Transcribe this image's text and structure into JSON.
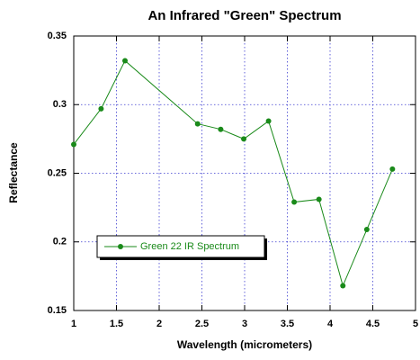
{
  "chart_data": {
    "type": "line",
    "title": "An Infrared \"Green\" Spectrum",
    "xlabel": "Wavelength (micrometers)",
    "ylabel": "Reflectance",
    "x": [
      1.0,
      1.32,
      1.6,
      2.45,
      2.72,
      2.99,
      3.28,
      3.58,
      3.87,
      4.15,
      4.43,
      4.73
    ],
    "series": [
      {
        "name": "Green 22 IR Spectrum",
        "color": "#1a8a1a",
        "values": [
          0.271,
          0.297,
          0.332,
          0.286,
          0.282,
          0.275,
          0.288,
          0.229,
          0.231,
          0.168,
          0.209,
          0.253
        ]
      }
    ],
    "xlim": [
      1,
      5
    ],
    "xticks": [
      1,
      1.5,
      2,
      2.5,
      3,
      3.5,
      4,
      4.5,
      5
    ],
    "ylim": [
      0.15,
      0.35
    ],
    "yticks": [
      0.15,
      0.2,
      0.25,
      0.3,
      0.35
    ],
    "grid": true,
    "legend": "left"
  }
}
